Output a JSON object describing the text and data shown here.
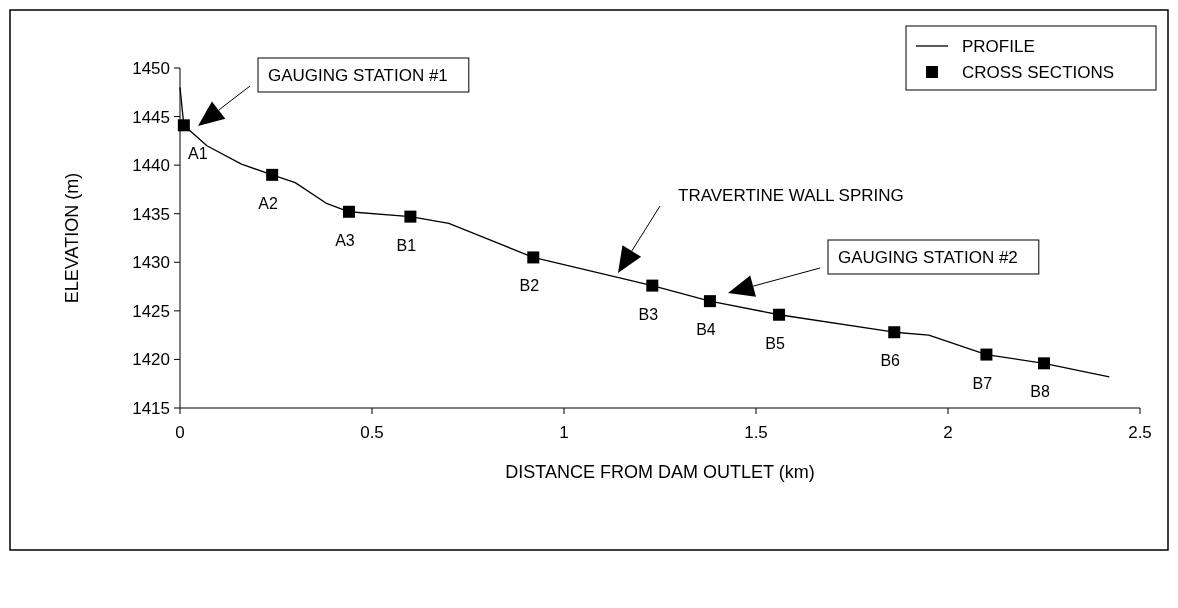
{
  "chart_data": {
    "type": "line",
    "xlabel": "DISTANCE FROM DAM OUTLET (km)",
    "ylabel": "ELEVATION (m)",
    "xlim": [
      0,
      2.5
    ],
    "xticks": [
      0,
      0.5,
      1,
      1.5,
      2,
      2.5
    ],
    "ylim": [
      1415,
      1450
    ],
    "yticks": [
      1415,
      1420,
      1425,
      1430,
      1435,
      1440,
      1445,
      1450
    ],
    "grid": false,
    "legend": "top right",
    "series": [
      {
        "name": "PROFILE",
        "color": "#000000",
        "marker": "none",
        "line_style": "solid",
        "x": [
          0.0,
          0.01,
          0.07,
          0.16,
          0.24,
          0.3,
          0.38,
          0.44,
          0.6,
          0.7,
          0.82,
          0.92,
          1.23,
          1.38,
          1.56,
          1.86,
          1.95,
          2.1,
          2.25,
          2.42
        ],
        "values": [
          1448,
          1444.1,
          1442,
          1440.1,
          1439,
          1438.2,
          1436.1,
          1435.2,
          1434.7,
          1434,
          1432.1,
          1430.5,
          1427.6,
          1426,
          1424.6,
          1422.8,
          1422.5,
          1420.5,
          1419.6,
          1418.2
        ]
      },
      {
        "name": "CROSS SECTIONS",
        "type": "scatter",
        "color": "#000000",
        "marker": "square",
        "x": [
          0.01,
          0.24,
          0.44,
          0.6,
          0.92,
          1.23,
          1.38,
          1.56,
          1.86,
          2.1,
          2.25
        ],
        "values": [
          1444.1,
          1439,
          1435.2,
          1434.7,
          1430.5,
          1427.6,
          1426,
          1424.6,
          1422.8,
          1420.5,
          1419.6
        ],
        "value_labels": [
          "A1",
          "A2",
          "A3",
          "B1",
          "B2",
          "B3",
          "B4",
          "B5",
          "B6",
          "B7",
          "B8"
        ]
      }
    ],
    "annotations": [
      "GAUGING STATION #1",
      "TRAVERTINE WALL SPRING",
      "GAUGING STATION #2"
    ]
  }
}
